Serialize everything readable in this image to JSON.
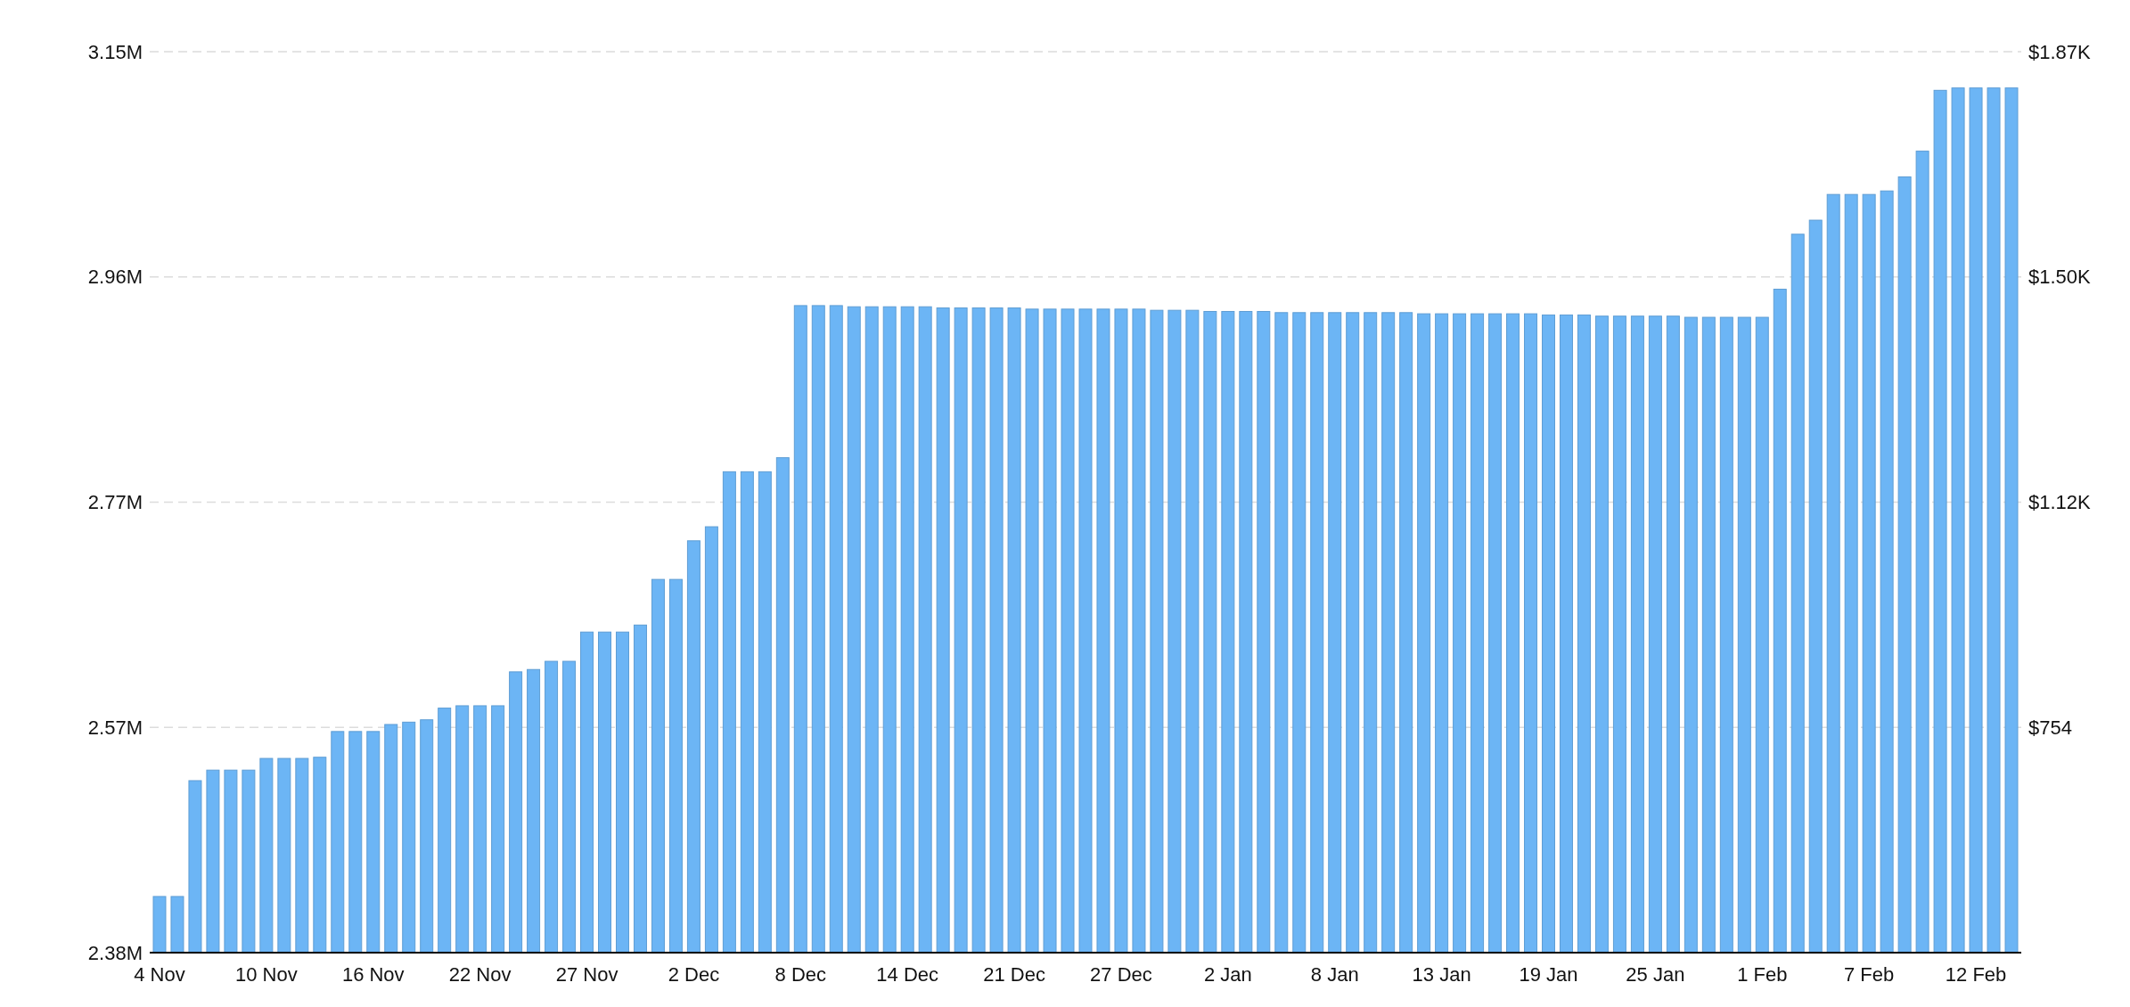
{
  "chart_data": {
    "type": "bar",
    "categories": [
      "4 Nov",
      null,
      null,
      null,
      null,
      null,
      "10 Nov",
      null,
      null,
      null,
      null,
      null,
      "16 Nov",
      null,
      null,
      null,
      null,
      null,
      "22 Nov",
      null,
      null,
      null,
      null,
      null,
      "27 Nov",
      null,
      null,
      null,
      null,
      null,
      "2 Dec",
      null,
      null,
      null,
      null,
      null,
      "8 Dec",
      null,
      null,
      null,
      null,
      null,
      "14 Dec",
      null,
      null,
      null,
      null,
      null,
      "21 Dec",
      null,
      null,
      null,
      null,
      null,
      "27 Dec",
      null,
      null,
      null,
      null,
      null,
      "2 Jan",
      null,
      null,
      null,
      null,
      null,
      "8 Jan",
      null,
      null,
      null,
      null,
      null,
      "13 Jan",
      null,
      null,
      null,
      null,
      null,
      "19 Jan",
      null,
      null,
      null,
      null,
      null,
      "25 Jan",
      null,
      null,
      null,
      null,
      null,
      "1 Feb",
      null,
      null,
      null,
      null,
      null,
      "7 Feb",
      null,
      null,
      null,
      null,
      null,
      "12 Feb",
      null,
      null
    ],
    "series": [
      {
        "color": "#6cb5f5",
        "values": [
          2.428,
          2.428,
          2.527,
          2.536,
          2.536,
          2.536,
          2.546,
          2.546,
          2.546,
          2.547,
          2.569,
          2.569,
          2.569,
          2.575,
          2.577,
          2.579,
          2.589,
          2.591,
          2.591,
          2.591,
          2.62,
          2.622,
          2.629,
          2.629,
          2.654,
          2.654,
          2.654,
          2.66,
          2.699,
          2.699,
          2.732,
          2.744,
          2.791,
          2.791,
          2.791,
          2.803,
          2.933,
          2.933,
          2.933,
          2.932,
          2.932,
          2.932,
          2.932,
          2.932,
          2.931,
          2.931,
          2.931,
          2.931,
          2.931,
          2.93,
          2.93,
          2.93,
          2.93,
          2.93,
          2.93,
          2.93,
          2.929,
          2.929,
          2.929,
          2.928,
          2.928,
          2.928,
          2.928,
          2.927,
          2.927,
          2.927,
          2.927,
          2.927,
          2.927,
          2.927,
          2.927,
          2.926,
          2.926,
          2.926,
          2.926,
          2.926,
          2.926,
          2.926,
          2.925,
          2.925,
          2.925,
          2.924,
          2.924,
          2.924,
          2.924,
          2.924,
          2.923,
          2.923,
          2.923,
          2.923,
          2.923,
          2.947,
          2.994,
          3.006,
          3.028,
          3.028,
          3.028,
          3.031,
          3.043,
          3.065,
          3.117,
          3.119,
          3.119,
          3.119,
          3.119
        ]
      }
    ],
    "ylim": [
      2.38,
      3.15
    ],
    "yticks": [
      {
        "value": 2.38,
        "label": "2.38M"
      },
      {
        "value": 2.5725,
        "label": "2.57M"
      },
      {
        "value": 2.765,
        "label": "2.77M"
      },
      {
        "value": 2.9575,
        "label": "2.96M"
      },
      {
        "value": 3.15,
        "label": "3.15M"
      }
    ],
    "y2lim": [
      383.2,
      1866.4
    ],
    "y2ticks": [
      {
        "value": 754,
        "label": "$754"
      },
      {
        "value": 1124.8,
        "label": "$1.12K"
      },
      {
        "value": 1495.6,
        "label": "$1.50K"
      },
      {
        "value": 1866.4,
        "label": "$1.87K"
      }
    ],
    "grid": "y"
  }
}
